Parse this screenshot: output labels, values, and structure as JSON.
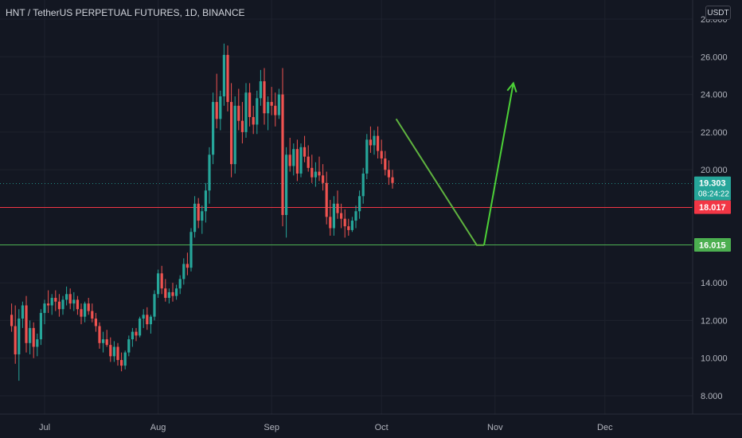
{
  "header": {
    "title": "HNT / TetherUS PERPETUAL FUTURES, 1D, BINANCE",
    "currency": "USDT"
  },
  "colors": {
    "background": "#131722",
    "up": "#26a69a",
    "down": "#ef5350",
    "resistance": "#f23645",
    "support": "#4caf50",
    "projection": "#4cd137",
    "current_tag": "#26a69a"
  },
  "chart_data": {
    "type": "candlestick",
    "title": "HNT / TetherUS PERPETUAL FUTURES, 1D, BINANCE",
    "y_axis": {
      "ticks": [
        "8.000",
        "10.000",
        "12.000",
        "14.000",
        "16.000",
        "18.000",
        "20.000",
        "22.000",
        "24.000",
        "26.000",
        "28.000"
      ],
      "ylim": [
        7.2,
        28.2
      ]
    },
    "x_axis": {
      "ticks": [
        "Jul",
        "Aug",
        "Sep",
        "Oct",
        "Nov",
        "Dec"
      ]
    },
    "price_tags": {
      "current": {
        "value": "19.303",
        "countdown": "08:24:22"
      },
      "resistance": {
        "value": "18.017"
      },
      "support": {
        "value": "16.015"
      }
    },
    "horizontal_lines": [
      {
        "name": "resistance",
        "value": 18.017
      },
      {
        "name": "support",
        "value": 16.015
      },
      {
        "name": "last-price",
        "value": 19.303
      }
    ],
    "projection_path": [
      {
        "x": "2022-10-05",
        "y": 22.7
      },
      {
        "x": "2022-10-27",
        "y": 16.0
      },
      {
        "x": "2022-10-29",
        "y": 16.0
      },
      {
        "x": "2022-11-06",
        "y": 24.6
      }
    ],
    "candles": [
      [
        "2022-06-22",
        12.3,
        12.9,
        11.4,
        11.7
      ],
      [
        "2022-06-23",
        11.7,
        12.8,
        9.7,
        10.2
      ],
      [
        "2022-06-24",
        10.2,
        12.6,
        8.8,
        12.1
      ],
      [
        "2022-06-25",
        12.1,
        13.0,
        11.6,
        12.8
      ],
      [
        "2022-06-26",
        12.8,
        13.3,
        10.3,
        10.8
      ],
      [
        "2022-06-27",
        10.8,
        12.0,
        10.2,
        11.6
      ],
      [
        "2022-06-28",
        11.6,
        11.9,
        10.0,
        10.6
      ],
      [
        "2022-06-29",
        10.6,
        11.3,
        10.1,
        11.0
      ],
      [
        "2022-06-30",
        11.0,
        12.6,
        10.7,
        12.4
      ],
      [
        "2022-07-01",
        12.4,
        13.1,
        11.8,
        12.9
      ],
      [
        "2022-07-02",
        12.9,
        13.6,
        12.4,
        12.8
      ],
      [
        "2022-07-03",
        12.8,
        13.4,
        12.3,
        13.2
      ],
      [
        "2022-07-04",
        13.2,
        13.6,
        12.5,
        13.0
      ],
      [
        "2022-07-05",
        13.0,
        13.4,
        12.2,
        12.6
      ],
      [
        "2022-07-06",
        12.6,
        13.3,
        12.3,
        13.1
      ],
      [
        "2022-07-07",
        13.1,
        13.8,
        12.8,
        13.4
      ],
      [
        "2022-07-08",
        13.4,
        13.7,
        12.6,
        12.9
      ],
      [
        "2022-07-09",
        12.9,
        13.5,
        12.5,
        13.1
      ],
      [
        "2022-07-10",
        13.1,
        13.3,
        12.3,
        12.6
      ],
      [
        "2022-07-11",
        12.6,
        12.9,
        11.8,
        12.2
      ],
      [
        "2022-07-12",
        12.2,
        13.0,
        11.9,
        12.9
      ],
      [
        "2022-07-13",
        12.9,
        13.2,
        12.3,
        12.5
      ],
      [
        "2022-07-14",
        12.5,
        12.9,
        11.9,
        12.1
      ],
      [
        "2022-07-15",
        12.1,
        12.4,
        11.4,
        11.7
      ],
      [
        "2022-07-16",
        11.7,
        11.9,
        10.5,
        10.8
      ],
      [
        "2022-07-17",
        10.8,
        11.4,
        10.3,
        11.0
      ],
      [
        "2022-07-18",
        11.0,
        11.5,
        10.6,
        10.7
      ],
      [
        "2022-07-19",
        10.7,
        11.1,
        9.8,
        10.1
      ],
      [
        "2022-07-20",
        10.1,
        10.9,
        9.8,
        10.6
      ],
      [
        "2022-07-21",
        10.6,
        10.8,
        9.6,
        9.9
      ],
      [
        "2022-07-22",
        9.9,
        10.3,
        9.3,
        9.6
      ],
      [
        "2022-07-23",
        9.6,
        10.4,
        9.4,
        10.3
      ],
      [
        "2022-07-24",
        10.3,
        11.2,
        10.1,
        11.0
      ],
      [
        "2022-07-25",
        11.0,
        11.6,
        10.6,
        11.4
      ],
      [
        "2022-07-26",
        11.4,
        11.6,
        10.9,
        11.2
      ],
      [
        "2022-07-27",
        11.2,
        12.2,
        11.1,
        12.1
      ],
      [
        "2022-07-28",
        12.1,
        12.6,
        11.6,
        12.3
      ],
      [
        "2022-07-29",
        12.3,
        12.7,
        11.5,
        11.8
      ],
      [
        "2022-07-30",
        11.8,
        12.3,
        11.3,
        12.2
      ],
      [
        "2022-07-31",
        12.2,
        13.6,
        12.0,
        13.4
      ],
      [
        "2022-08-01",
        13.4,
        14.7,
        13.2,
        14.5
      ],
      [
        "2022-08-02",
        14.5,
        14.9,
        13.4,
        13.7
      ],
      [
        "2022-08-03",
        13.7,
        14.2,
        13.0,
        13.2
      ],
      [
        "2022-08-04",
        13.2,
        13.7,
        12.9,
        13.5
      ],
      [
        "2022-08-05",
        13.5,
        14.0,
        13.0,
        13.3
      ],
      [
        "2022-08-06",
        13.3,
        13.9,
        13.1,
        13.7
      ],
      [
        "2022-08-07",
        13.7,
        14.4,
        13.4,
        14.2
      ],
      [
        "2022-08-08",
        14.2,
        15.3,
        13.9,
        15.0
      ],
      [
        "2022-08-09",
        15.0,
        15.6,
        14.4,
        14.8
      ],
      [
        "2022-08-10",
        14.8,
        16.9,
        14.6,
        16.7
      ],
      [
        "2022-08-11",
        16.7,
        18.6,
        16.4,
        18.2
      ],
      [
        "2022-08-12",
        18.2,
        18.5,
        16.9,
        17.3
      ],
      [
        "2022-08-13",
        17.3,
        18.1,
        16.6,
        17.8
      ],
      [
        "2022-08-14",
        17.8,
        19.3,
        17.2,
        18.9
      ],
      [
        "2022-08-15",
        18.9,
        21.2,
        18.2,
        20.8
      ],
      [
        "2022-08-16",
        20.8,
        24.1,
        20.3,
        23.6
      ],
      [
        "2022-08-17",
        23.6,
        25.1,
        22.2,
        22.7
      ],
      [
        "2022-08-18",
        22.7,
        24.2,
        22.1,
        23.9
      ],
      [
        "2022-08-19",
        23.9,
        26.7,
        23.4,
        26.1
      ],
      [
        "2022-08-20",
        26.1,
        26.6,
        23.1,
        23.6
      ],
      [
        "2022-08-21",
        23.6,
        24.6,
        19.6,
        20.3
      ],
      [
        "2022-08-22",
        20.3,
        23.9,
        19.8,
        23.4
      ],
      [
        "2022-08-23",
        23.4,
        24.3,
        22.1,
        22.6
      ],
      [
        "2022-08-24",
        22.6,
        23.6,
        21.4,
        22.0
      ],
      [
        "2022-08-25",
        22.0,
        24.6,
        21.7,
        24.1
      ],
      [
        "2022-08-26",
        24.1,
        24.6,
        22.3,
        22.8
      ],
      [
        "2022-08-27",
        22.8,
        23.4,
        21.9,
        22.4
      ],
      [
        "2022-08-28",
        22.4,
        24.2,
        21.9,
        23.8
      ],
      [
        "2022-08-29",
        23.8,
        25.3,
        23.4,
        24.7
      ],
      [
        "2022-08-30",
        24.7,
        25.4,
        22.4,
        23.0
      ],
      [
        "2022-08-31",
        23.0,
        23.9,
        22.1,
        23.6
      ],
      [
        "2022-09-01",
        23.6,
        24.4,
        22.9,
        23.4
      ],
      [
        "2022-09-02",
        23.4,
        24.1,
        22.3,
        22.9
      ],
      [
        "2022-09-03",
        22.9,
        24.3,
        22.7,
        24.0
      ],
      [
        "2022-09-04",
        24.0,
        25.4,
        17.0,
        17.6
      ],
      [
        "2022-09-05",
        17.6,
        21.2,
        16.4,
        20.8
      ],
      [
        "2022-09-06",
        20.8,
        21.7,
        19.9,
        20.2
      ],
      [
        "2022-09-07",
        20.2,
        21.4,
        19.7,
        21.1
      ],
      [
        "2022-09-08",
        21.1,
        21.6,
        19.4,
        19.8
      ],
      [
        "2022-09-09",
        19.8,
        21.4,
        19.6,
        21.2
      ],
      [
        "2022-09-10",
        21.2,
        21.8,
        20.4,
        20.7
      ],
      [
        "2022-09-11",
        20.7,
        21.3,
        19.9,
        20.1
      ],
      [
        "2022-09-12",
        20.1,
        20.8,
        19.3,
        19.6
      ],
      [
        "2022-09-13",
        19.6,
        20.4,
        19.1,
        19.9
      ],
      [
        "2022-09-14",
        19.9,
        20.7,
        19.4,
        19.7
      ],
      [
        "2022-09-15",
        19.7,
        20.3,
        18.9,
        19.3
      ],
      [
        "2022-09-16",
        19.3,
        19.9,
        17.1,
        17.5
      ],
      [
        "2022-09-17",
        17.5,
        18.4,
        16.5,
        16.9
      ],
      [
        "2022-09-18",
        16.9,
        18.6,
        16.5,
        18.2
      ],
      [
        "2022-09-19",
        18.2,
        18.9,
        17.4,
        17.7
      ],
      [
        "2022-09-20",
        17.7,
        18.2,
        16.9,
        17.4
      ],
      [
        "2022-09-21",
        17.4,
        17.9,
        16.4,
        17.0
      ],
      [
        "2022-09-22",
        17.0,
        17.4,
        16.5,
        16.8
      ],
      [
        "2022-09-23",
        16.8,
        17.5,
        16.7,
        17.3
      ],
      [
        "2022-09-24",
        17.3,
        18.1,
        16.9,
        17.8
      ],
      [
        "2022-09-25",
        17.8,
        18.9,
        17.4,
        18.6
      ],
      [
        "2022-09-26",
        18.6,
        20.1,
        18.2,
        19.8
      ],
      [
        "2022-09-27",
        19.8,
        21.9,
        19.5,
        21.6
      ],
      [
        "2022-09-28",
        21.6,
        22.3,
        20.9,
        21.3
      ],
      [
        "2022-09-29",
        21.3,
        22.1,
        20.8,
        21.8
      ],
      [
        "2022-09-30",
        21.8,
        22.3,
        20.6,
        21.0
      ],
      [
        "2022-10-01",
        21.0,
        21.6,
        20.3,
        20.6
      ],
      [
        "2022-10-02",
        20.6,
        21.0,
        19.7,
        20.0
      ],
      [
        "2022-10-03",
        20.0,
        20.5,
        19.2,
        19.6
      ],
      [
        "2022-10-04",
        19.6,
        20.0,
        19.0,
        19.3
      ]
    ]
  }
}
